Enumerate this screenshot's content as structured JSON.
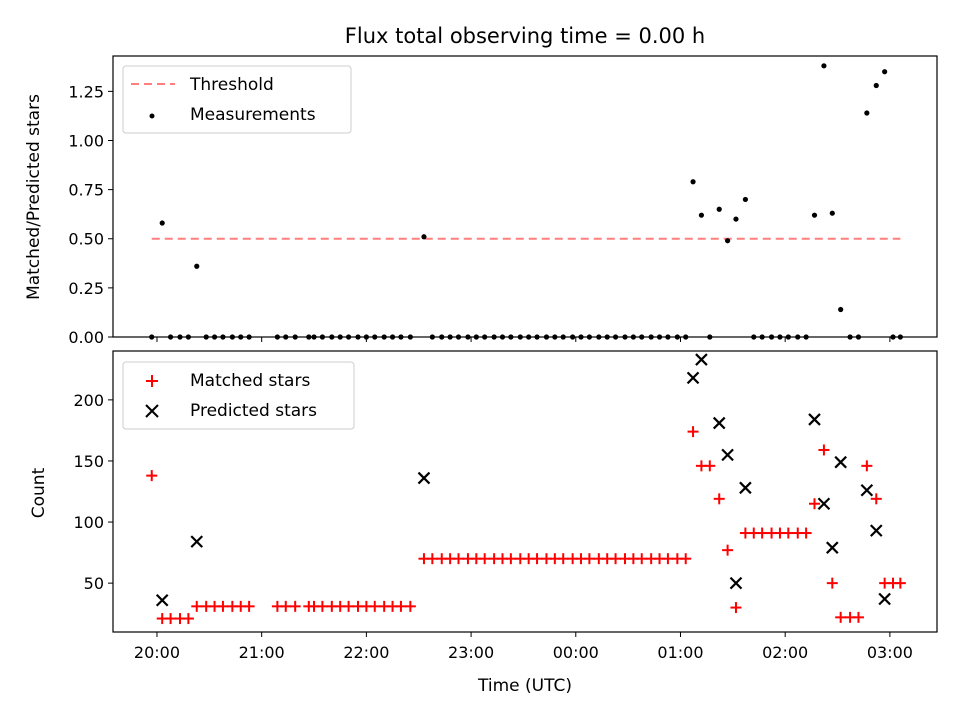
{
  "chart_data": [
    {
      "type": "scatter",
      "title": "Flux total observing time = 0.00 h",
      "ylabel": "Matched/Predicted stars",
      "xlabel": "",
      "ylim": [
        0,
        1.43
      ],
      "yticks": [
        0.0,
        0.25,
        0.5,
        0.75,
        1.0,
        1.25
      ],
      "ytick_labels": [
        "0.00",
        "0.25",
        "0.50",
        "0.75",
        "1.00",
        "1.25"
      ],
      "xlim_hours": [
        19.58,
        27.45
      ],
      "grid": false,
      "legend_position": "top-left",
      "threshold": {
        "name": "Threshold",
        "y": 0.5,
        "x_start": 19.95,
        "x_end": 27.1,
        "color": "#ff7f7f"
      },
      "series": [
        {
          "name": "Measurements",
          "color": "#000000",
          "points": [
            [
              19.95,
              0.0
            ],
            [
              20.05,
              0.58
            ],
            [
              20.13,
              0.0
            ],
            [
              20.22,
              0.0
            ],
            [
              20.3,
              0.0
            ],
            [
              20.38,
              0.36
            ],
            [
              20.47,
              0.0
            ],
            [
              20.55,
              0.0
            ],
            [
              20.63,
              0.0
            ],
            [
              20.72,
              0.0
            ],
            [
              20.8,
              0.0
            ],
            [
              20.88,
              0.0
            ],
            [
              21.15,
              0.0
            ],
            [
              21.23,
              0.0
            ],
            [
              21.32,
              0.0
            ],
            [
              21.45,
              0.0
            ],
            [
              21.5,
              0.0
            ],
            [
              21.58,
              0.0
            ],
            [
              21.67,
              0.0
            ],
            [
              21.75,
              0.0
            ],
            [
              21.83,
              0.0
            ],
            [
              21.92,
              0.0
            ],
            [
              22.0,
              0.0
            ],
            [
              22.08,
              0.0
            ],
            [
              22.17,
              0.0
            ],
            [
              22.25,
              0.0
            ],
            [
              22.33,
              0.0
            ],
            [
              22.42,
              0.0
            ],
            [
              22.55,
              0.51
            ],
            [
              22.63,
              0.0
            ],
            [
              22.72,
              0.0
            ],
            [
              22.8,
              0.0
            ],
            [
              22.88,
              0.0
            ],
            [
              22.97,
              0.0
            ],
            [
              23.05,
              0.0
            ],
            [
              23.13,
              0.0
            ],
            [
              23.22,
              0.0
            ],
            [
              23.3,
              0.0
            ],
            [
              23.38,
              0.0
            ],
            [
              23.47,
              0.0
            ],
            [
              23.55,
              0.0
            ],
            [
              23.63,
              0.0
            ],
            [
              23.72,
              0.0
            ],
            [
              23.8,
              0.0
            ],
            [
              23.88,
              0.0
            ],
            [
              23.97,
              0.0
            ],
            [
              24.05,
              0.0
            ],
            [
              24.13,
              0.0
            ],
            [
              24.22,
              0.0
            ],
            [
              24.3,
              0.0
            ],
            [
              24.38,
              0.0
            ],
            [
              24.47,
              0.0
            ],
            [
              24.55,
              0.0
            ],
            [
              24.63,
              0.0
            ],
            [
              24.72,
              0.0
            ],
            [
              24.8,
              0.0
            ],
            [
              24.88,
              0.0
            ],
            [
              24.97,
              0.0
            ],
            [
              25.05,
              0.0
            ],
            [
              25.12,
              0.79
            ],
            [
              25.2,
              0.62
            ],
            [
              25.28,
              0.0
            ],
            [
              25.37,
              0.65
            ],
            [
              25.45,
              0.49
            ],
            [
              25.53,
              0.6
            ],
            [
              25.62,
              0.7
            ],
            [
              25.7,
              0.0
            ],
            [
              25.78,
              0.0
            ],
            [
              25.87,
              0.0
            ],
            [
              25.95,
              0.0
            ],
            [
              26.03,
              0.0
            ],
            [
              26.12,
              0.0
            ],
            [
              26.2,
              0.0
            ],
            [
              26.28,
              0.62
            ],
            [
              26.37,
              1.38
            ],
            [
              26.45,
              0.63
            ],
            [
              26.53,
              0.14
            ],
            [
              26.62,
              0.0
            ],
            [
              26.7,
              0.0
            ],
            [
              26.78,
              1.14
            ],
            [
              26.87,
              1.28
            ],
            [
              26.95,
              1.35
            ],
            [
              27.03,
              0.0
            ],
            [
              27.1,
              0.0
            ]
          ]
        }
      ],
      "legend": {
        "threshold_label": "Threshold",
        "measurements_label": "Measurements"
      }
    },
    {
      "type": "scatter",
      "title": "",
      "ylabel": "Count",
      "xlabel": "Time (UTC)",
      "ylim": [
        10,
        240
      ],
      "yticks": [
        50,
        100,
        150,
        200
      ],
      "ytick_labels": [
        "50",
        "100",
        "150",
        "200"
      ],
      "xlim_hours": [
        19.58,
        27.45
      ],
      "xticks_hours": [
        20,
        21,
        22,
        23,
        24,
        25,
        26,
        27
      ],
      "xtick_labels": [
        "20:00",
        "21:00",
        "22:00",
        "23:00",
        "00:00",
        "01:00",
        "02:00",
        "03:00"
      ],
      "grid": false,
      "legend_position": "top-left",
      "series": [
        {
          "name": "Matched stars",
          "marker": "plus",
          "color": "#ff0000",
          "points": [
            [
              19.95,
              138
            ],
            [
              20.05,
              21
            ],
            [
              20.13,
              21
            ],
            [
              20.22,
              21
            ],
            [
              20.3,
              21
            ],
            [
              20.38,
              31
            ],
            [
              20.47,
              31
            ],
            [
              20.55,
              31
            ],
            [
              20.63,
              31
            ],
            [
              20.72,
              31
            ],
            [
              20.8,
              31
            ],
            [
              20.88,
              31
            ],
            [
              21.15,
              31
            ],
            [
              21.23,
              31
            ],
            [
              21.32,
              31
            ],
            [
              21.45,
              31
            ],
            [
              21.5,
              31
            ],
            [
              21.58,
              31
            ],
            [
              21.67,
              31
            ],
            [
              21.75,
              31
            ],
            [
              21.83,
              31
            ],
            [
              21.92,
              31
            ],
            [
              22.0,
              31
            ],
            [
              22.08,
              31
            ],
            [
              22.17,
              31
            ],
            [
              22.25,
              31
            ],
            [
              22.33,
              31
            ],
            [
              22.42,
              31
            ],
            [
              22.55,
              70
            ],
            [
              22.63,
              70
            ],
            [
              22.72,
              70
            ],
            [
              22.8,
              70
            ],
            [
              22.88,
              70
            ],
            [
              22.97,
              70
            ],
            [
              23.05,
              70
            ],
            [
              23.13,
              70
            ],
            [
              23.22,
              70
            ],
            [
              23.3,
              70
            ],
            [
              23.38,
              70
            ],
            [
              23.47,
              70
            ],
            [
              23.55,
              70
            ],
            [
              23.63,
              70
            ],
            [
              23.72,
              70
            ],
            [
              23.8,
              70
            ],
            [
              23.88,
              70
            ],
            [
              23.97,
              70
            ],
            [
              24.05,
              70
            ],
            [
              24.13,
              70
            ],
            [
              24.22,
              70
            ],
            [
              24.3,
              70
            ],
            [
              24.38,
              70
            ],
            [
              24.47,
              70
            ],
            [
              24.55,
              70
            ],
            [
              24.63,
              70
            ],
            [
              24.72,
              70
            ],
            [
              24.8,
              70
            ],
            [
              24.88,
              70
            ],
            [
              24.97,
              70
            ],
            [
              25.05,
              70
            ],
            [
              25.12,
              174
            ],
            [
              25.2,
              146
            ],
            [
              25.28,
              146
            ],
            [
              25.37,
              119
            ],
            [
              25.45,
              77
            ],
            [
              25.53,
              30
            ],
            [
              25.62,
              91
            ],
            [
              25.7,
              91
            ],
            [
              25.78,
              91
            ],
            [
              25.87,
              91
            ],
            [
              25.95,
              91
            ],
            [
              26.03,
              91
            ],
            [
              26.12,
              91
            ],
            [
              26.2,
              91
            ],
            [
              26.28,
              115
            ],
            [
              26.37,
              159
            ],
            [
              26.45,
              50
            ],
            [
              26.53,
              22
            ],
            [
              26.62,
              22
            ],
            [
              26.7,
              22
            ],
            [
              26.78,
              146
            ],
            [
              26.87,
              119
            ],
            [
              26.95,
              50
            ],
            [
              27.03,
              50
            ],
            [
              27.1,
              50
            ]
          ]
        },
        {
          "name": "Predicted stars",
          "marker": "x",
          "color": "#000000",
          "points": [
            [
              20.05,
              36
            ],
            [
              20.38,
              84
            ],
            [
              22.55,
              136
            ],
            [
              25.12,
              218
            ],
            [
              25.2,
              233
            ],
            [
              25.37,
              181
            ],
            [
              25.45,
              155
            ],
            [
              25.53,
              50
            ],
            [
              25.62,
              128
            ],
            [
              26.28,
              184
            ],
            [
              26.37,
              115
            ],
            [
              26.45,
              79
            ],
            [
              26.53,
              149
            ],
            [
              26.78,
              126
            ],
            [
              26.87,
              93
            ],
            [
              26.95,
              37
            ]
          ]
        }
      ]
    }
  ]
}
